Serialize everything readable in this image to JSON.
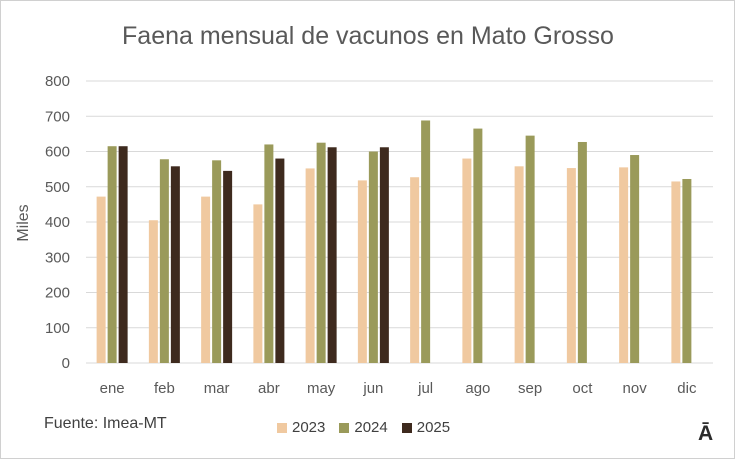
{
  "chart_data": {
    "type": "bar",
    "title": "Faena mensual de vacunos en Mato Grosso",
    "xlabel": "",
    "ylabel": "Miles",
    "ylim": [
      0,
      800
    ],
    "yticks": [
      0,
      100,
      200,
      300,
      400,
      500,
      600,
      700,
      800
    ],
    "grid": true,
    "legend_position": "bottom",
    "categories": [
      "ene",
      "feb",
      "mar",
      "abr",
      "may",
      "jun",
      "jul",
      "ago",
      "sep",
      "oct",
      "nov",
      "dic"
    ],
    "series": [
      {
        "name": "2023",
        "color": "#F0C9A0",
        "values": [
          472,
          405,
          472,
          450,
          552,
          518,
          527,
          580,
          558,
          553,
          555,
          515
        ]
      },
      {
        "name": "2024",
        "color": "#9A9A5A",
        "values": [
          615,
          578,
          575,
          620,
          625,
          600,
          688,
          665,
          645,
          627,
          590,
          522
        ]
      },
      {
        "name": "2025",
        "color": "#3E2A1E",
        "values": [
          615,
          558,
          545,
          580,
          612,
          612,
          null,
          null,
          null,
          null,
          null,
          null
        ]
      }
    ]
  },
  "footer": {
    "source": "Fuente: Imea-MT",
    "logo": "Ā"
  },
  "colors": {
    "gridline": "#d9d9d9",
    "axis_text": "#595959",
    "title_text": "#595959"
  }
}
